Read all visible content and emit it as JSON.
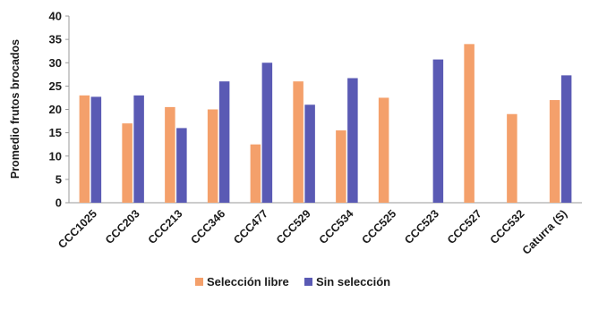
{
  "chart_data": {
    "type": "bar",
    "title": "",
    "xlabel": "",
    "ylabel": "Promedio frutos brocados",
    "ylim": [
      0,
      40
    ],
    "yticks": [
      0,
      5,
      10,
      15,
      20,
      25,
      30,
      35,
      40
    ],
    "grid": false,
    "legend_position": "bottom",
    "categories": [
      "CCC1025",
      "CCC203",
      "CCC213",
      "CCC346",
      "CCC477",
      "CCC529",
      "CCC534",
      "CCC525",
      "CCC523",
      "CCC527",
      "CCC532",
      "Caturra (S)"
    ],
    "series": [
      {
        "name": "Selección libre",
        "color": "#f4a06b",
        "values": [
          23,
          17,
          20.5,
          20,
          12.5,
          26,
          15.5,
          22.5,
          null,
          34,
          19,
          22
        ]
      },
      {
        "name": "Sin selección",
        "color": "#5a5ab4",
        "values": [
          22.7,
          23,
          16,
          26,
          30,
          21,
          26.7,
          null,
          30.7,
          null,
          null,
          27.3
        ]
      }
    ]
  }
}
